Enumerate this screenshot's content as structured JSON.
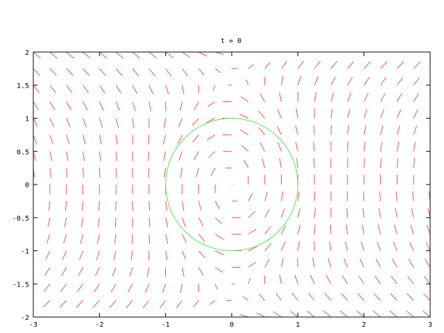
{
  "chart_data": {
    "type": "vector-field",
    "title": "t = 0",
    "xlabel": "",
    "ylabel": "",
    "xlim": [
      -3,
      3
    ],
    "ylim": [
      -2,
      2
    ],
    "x_ticks": [
      "-3",
      "-2",
      "-1",
      "0",
      "1",
      "2",
      "3"
    ],
    "y_ticks": [
      "-2",
      "-1.5",
      "-1",
      "-0.5",
      "0",
      "0.5",
      "1",
      "1.5",
      "2"
    ],
    "grid": false,
    "legend": "none",
    "sample_step": 0.25,
    "overlay": {
      "shape": "circle",
      "center": [
        0,
        0
      ],
      "radius": 1
    },
    "colors": {
      "vectors": "#ff4a4a",
      "circle": "#44ee44",
      "axes": "#000000"
    }
  }
}
